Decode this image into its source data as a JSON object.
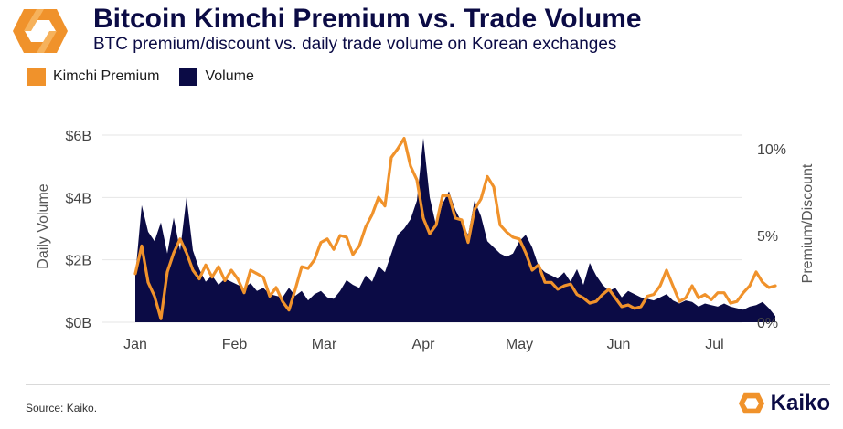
{
  "header": {
    "title": "Bitcoin Kimchi Premium vs. Trade Volume",
    "subtitle": "BTC premium/discount vs. daily trade volume on Korean exchanges"
  },
  "legend": [
    {
      "label": "Kimchi Premium",
      "color": "#f0922b"
    },
    {
      "label": "Volume",
      "color": "#0b0b45"
    }
  ],
  "footer": {
    "source": "Source: Kaiko.",
    "brand": "Kaiko",
    "logo_icon": "kaiko-logo-icon"
  },
  "chart_data": {
    "type": "area",
    "xlabel": "",
    "ylabel_left": "Daily Volume",
    "ylabel_right": "Premium/Discount",
    "x_ticks": [
      "Jan",
      "Feb",
      "Mar",
      "Apr",
      "May",
      "Jun",
      "Jul"
    ],
    "y_left_ticks": [
      "$0B",
      "$2B",
      "$4B",
      "$6B"
    ],
    "y_left_range": [
      0,
      6
    ],
    "y_right_ticks": [
      "0%",
      "5%",
      "10%"
    ],
    "y_right_range": [
      0,
      11
    ],
    "x_range_days": [
      0,
      200
    ],
    "series": [
      {
        "name": "Volume",
        "kind": "area",
        "axis": "left",
        "unit": "$B",
        "color": "#0b0b45",
        "x_day": [
          0,
          2,
          4,
          6,
          8,
          10,
          12,
          14,
          16,
          18,
          20,
          22,
          24,
          26,
          28,
          30,
          32,
          34,
          36,
          38,
          40,
          42,
          44,
          46,
          48,
          50,
          52,
          54,
          56,
          58,
          60,
          62,
          64,
          66,
          68,
          70,
          72,
          74,
          76,
          78,
          80,
          82,
          84,
          86,
          88,
          90,
          92,
          94,
          96,
          98,
          100,
          102,
          104,
          106,
          108,
          110,
          112,
          114,
          116,
          118,
          120,
          122,
          124,
          126,
          128,
          130,
          132,
          134,
          136,
          138,
          140,
          142,
          144,
          146,
          148,
          150,
          152,
          154,
          156,
          158,
          160,
          162,
          164,
          166,
          168,
          170,
          172,
          174,
          176,
          178,
          180,
          182,
          184,
          186,
          188,
          190,
          192,
          194,
          196,
          198,
          200
        ],
        "values": [
          1.5,
          3.75,
          2.9,
          2.6,
          3.2,
          2.2,
          3.35,
          2.3,
          4.0,
          2.3,
          1.7,
          1.3,
          1.5,
          1.2,
          1.4,
          1.3,
          1.2,
          1.1,
          1.25,
          1.0,
          1.1,
          0.9,
          0.85,
          0.8,
          1.1,
          0.85,
          1.0,
          0.7,
          0.9,
          1.0,
          0.8,
          0.75,
          1.0,
          1.35,
          1.2,
          1.1,
          1.5,
          1.3,
          1.8,
          1.6,
          2.2,
          2.8,
          3.0,
          3.3,
          3.9,
          5.9,
          4.0,
          3.1,
          3.8,
          4.2,
          3.6,
          3.2,
          2.8,
          3.9,
          3.4,
          2.6,
          2.4,
          2.2,
          2.1,
          2.2,
          2.6,
          2.8,
          2.4,
          1.8,
          1.6,
          1.5,
          1.4,
          1.6,
          1.3,
          1.7,
          1.2,
          1.9,
          1.5,
          1.2,
          1.0,
          1.1,
          0.8,
          1.0,
          0.9,
          0.8,
          0.75,
          0.7,
          0.8,
          0.9,
          0.7,
          0.6,
          0.7,
          0.65,
          0.5,
          0.6,
          0.55,
          0.5,
          0.6,
          0.5,
          0.45,
          0.4,
          0.5,
          0.55,
          0.65,
          0.45,
          0.2
        ]
      },
      {
        "name": "Kimchi Premium",
        "kind": "line",
        "axis": "right",
        "unit": "%",
        "color": "#f0922b",
        "x_day": [
          0,
          2,
          4,
          6,
          8,
          10,
          12,
          14,
          16,
          18,
          20,
          22,
          24,
          26,
          28,
          30,
          32,
          34,
          36,
          38,
          40,
          42,
          44,
          46,
          48,
          50,
          52,
          54,
          56,
          58,
          60,
          62,
          64,
          66,
          68,
          70,
          72,
          74,
          76,
          78,
          80,
          82,
          84,
          86,
          88,
          90,
          92,
          94,
          96,
          98,
          100,
          102,
          104,
          106,
          108,
          110,
          112,
          114,
          116,
          118,
          120,
          122,
          124,
          126,
          128,
          130,
          132,
          134,
          136,
          138,
          140,
          142,
          144,
          146,
          148,
          150,
          152,
          154,
          156,
          158,
          160,
          162,
          164,
          166,
          168,
          170,
          172,
          174,
          176,
          178,
          180,
          182,
          184,
          186,
          188,
          190,
          192,
          194,
          196,
          198,
          200
        ],
        "values": [
          2.8,
          4.4,
          2.3,
          1.5,
          0.2,
          2.9,
          4.0,
          4.8,
          4.0,
          3.0,
          2.5,
          3.3,
          2.6,
          3.2,
          2.4,
          3.0,
          2.5,
          1.7,
          3.0,
          2.8,
          2.6,
          1.5,
          2.0,
          1.2,
          0.7,
          1.9,
          3.2,
          3.1,
          3.6,
          4.6,
          4.8,
          4.2,
          5.0,
          4.9,
          3.9,
          4.4,
          5.5,
          6.2,
          7.2,
          6.7,
          9.5,
          10.0,
          10.6,
          9.0,
          8.2,
          6.0,
          5.1,
          5.6,
          7.3,
          7.3,
          6.0,
          5.9,
          4.6,
          6.5,
          7.1,
          8.4,
          7.8,
          5.6,
          5.2,
          4.9,
          4.8,
          4.0,
          3.0,
          3.3,
          2.3,
          2.3,
          1.9,
          2.1,
          2.2,
          1.6,
          1.4,
          1.1,
          1.2,
          1.6,
          1.9,
          1.4,
          0.9,
          1.0,
          0.8,
          0.9,
          1.5,
          1.6,
          2.1,
          3.0,
          2.1,
          1.2,
          1.4,
          2.1,
          1.4,
          1.6,
          1.3,
          1.7,
          1.7,
          1.1,
          1.2,
          1.7,
          2.1,
          2.9,
          2.3,
          2.0,
          2.1
        ]
      }
    ]
  }
}
